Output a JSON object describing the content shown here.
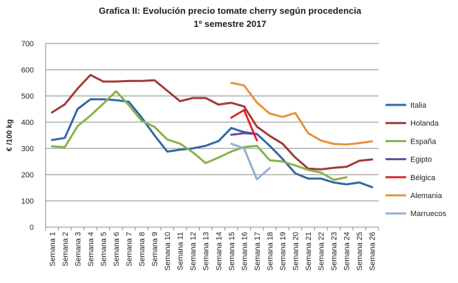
{
  "chart_data": {
    "type": "line",
    "title_line1": "Grafica II: Evolución precio tomate cherry según procedencia",
    "title_line2": "1º semestre 2017",
    "ylabel": "€ /100 kg",
    "xlabel": "",
    "ylim": [
      0,
      700
    ],
    "yticks": [
      0,
      100,
      200,
      300,
      400,
      500,
      600,
      700
    ],
    "grid": "horizontal",
    "legend_position": "right",
    "categories": [
      "Semana 1",
      "Semana 2",
      "Semana 3",
      "Semana 4",
      "Semana 5",
      "Semana 6",
      "Semana 7",
      "Semana 8",
      "Semana 9",
      "Semana 10",
      "Semana 11",
      "Semana 12",
      "Semana 13",
      "Semana 14",
      "Semana 15",
      "Semana 16",
      "Semana 17",
      "Semana 18",
      "Semana 19",
      "Semana 20",
      "Semana 21",
      "Semana 22",
      "Semana 23",
      "Semana 24",
      "Semana 25",
      "Semana 26"
    ],
    "series": [
      {
        "name": "Italia",
        "color": "#2e6aa3",
        "values": [
          332,
          340,
          450,
          487,
          487,
          484,
          478,
          418,
          350,
          288,
          295,
          300,
          310,
          328,
          378,
          362,
          355,
          310,
          260,
          205,
          185,
          185,
          170,
          163,
          170,
          152
        ]
      },
      {
        "name": "Holanda",
        "color": "#a03a36",
        "values": [
          437,
          468,
          528,
          580,
          555,
          555,
          557,
          557,
          560,
          520,
          480,
          492,
          492,
          467,
          474,
          460,
          383,
          348,
          318,
          265,
          223,
          220,
          226,
          230,
          253,
          258
        ]
      },
      {
        "name": "España",
        "color": "#86b24a",
        "values": [
          308,
          305,
          385,
          425,
          470,
          518,
          465,
          405,
          382,
          334,
          318,
          285,
          244,
          265,
          288,
          305,
          310,
          255,
          250,
          235,
          218,
          208,
          180,
          190,
          null,
          null
        ]
      },
      {
        "name": "Egipto",
        "color": "#6a4a9a",
        "values": [
          null,
          null,
          null,
          null,
          null,
          null,
          null,
          null,
          null,
          null,
          null,
          null,
          null,
          null,
          352,
          358,
          355,
          null,
          null,
          null,
          null,
          null,
          null,
          null,
          null,
          null
        ]
      },
      {
        "name": "Bélgica",
        "color": "#e0262b",
        "values": [
          null,
          null,
          null,
          null,
          null,
          null,
          null,
          null,
          null,
          null,
          null,
          null,
          null,
          null,
          417,
          446,
          330,
          null,
          null,
          null,
          null,
          null,
          null,
          null,
          null,
          null
        ]
      },
      {
        "name": "Alemania",
        "color": "#e8913a",
        "values": [
          null,
          null,
          null,
          null,
          null,
          null,
          null,
          null,
          null,
          null,
          null,
          null,
          null,
          null,
          550,
          540,
          475,
          433,
          420,
          435,
          358,
          330,
          317,
          315,
          320,
          327
        ]
      },
      {
        "name": "Marruecos",
        "color": "#93aed4",
        "values": [
          null,
          null,
          null,
          null,
          null,
          null,
          null,
          null,
          null,
          null,
          null,
          null,
          null,
          null,
          318,
          300,
          182,
          225,
          null,
          null,
          null,
          null,
          null,
          null,
          null,
          null
        ]
      }
    ]
  }
}
